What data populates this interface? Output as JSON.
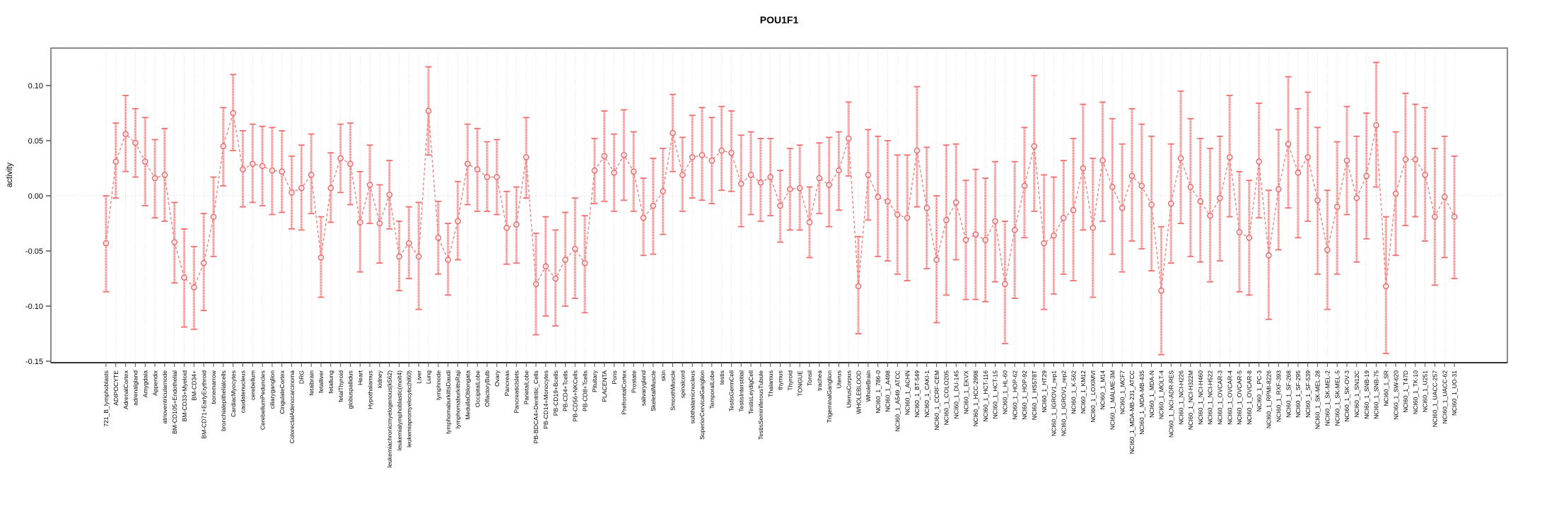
{
  "title": "POU1F1",
  "colors": {
    "point": "#e66a6a",
    "line": "#ef8585",
    "errorbar_wide": "#f5b4b4",
    "errorbar_dash": "#ee7272",
    "errorbar_cap": "#ee7272",
    "grid": "#e0e0e0",
    "zero_line": "#d9d9d9",
    "axis_box": "#8a8a8a",
    "axis_bottom": "#333333",
    "tick": "#555555"
  },
  "chart_data": {
    "type": "line",
    "title": "POU1F1",
    "xlabel": "",
    "ylabel": "activity",
    "ylim": [
      -0.151,
      0.134
    ],
    "yticks": [
      0.1,
      0.05,
      0.0,
      -0.05,
      -0.1,
      -0.15
    ],
    "grid": true,
    "legend": "none",
    "marker": "open-circle",
    "line_style": "dashed",
    "error_bars": true,
    "categories": [
      "721_B_lymphoblasts",
      "ADIPOCYTE",
      "AdrenalCortex",
      "adrenalgland",
      "Amygdala",
      "Appendix",
      "atrioventricularnode",
      "BM-CD105+Endothelial",
      "BM-CD33+Myeloid",
      "BM-CD34+",
      "BM-CD71+EarlyErythroid",
      "bonemarrow",
      "bronchialepithelialcells",
      "CardiacMyocytes",
      "caudatenucleus",
      "cerebellum",
      "CerebellumPeduncles",
      "ciliaryganglion",
      "CingulateCortex",
      "ColorectalAdenocarcinoma",
      "DRG",
      "fetalbrain",
      "fetalliver",
      "fetallung",
      "fetalThyroid",
      "globuspallidus",
      "Heart",
      "Hypothalamus",
      "kidney",
      "leukemiachronicmyelogenous(k562)",
      "leukemialymphoblastic(molt4)",
      "leukemiapromyelocytic(hl60)",
      "Liver",
      "Lung",
      "lymphnode",
      "lymphomaburkittsDaudi",
      "lymphomaburkittsRaji",
      "MedullaOblongata",
      "OccipitalLobe",
      "OlfactoryBulb",
      "Ovary",
      "Pancreas",
      "PancreaticIslets",
      "ParietalLobe",
      "PB-BDCA4+Dentritic_Cells",
      "PB-CD14+Monocytes",
      "PB-CD19+Bcells",
      "PB-CD4+Tcells",
      "PB-CD56+NKCells",
      "PB-CD8+Tcells",
      "Pituitary",
      "PLACENTA",
      "Pons",
      "PrefrontalCortex",
      "Prostate",
      "salivarygland",
      "SkeletalMuscle",
      "skin",
      "SmoothMuscle",
      "spinalcord",
      "subthalamicnucleus",
      "SuperiorCervicalGanglion",
      "TemporalLobe",
      "testis",
      "TestisGermCell",
      "TestisInterstitial",
      "TestisLeydigCell",
      "TestisSeminiferousTubule",
      "Thalamus",
      "thymus",
      "Thyroid",
      "TONGUE",
      "Tonsil",
      "trachea",
      "TrigeminalGanglion",
      "Uterus",
      "UterusCorpus",
      "WHOLEBLOOD",
      "WholeBrain",
      "NCI60_1_786-0",
      "NCI60_1_A498",
      "NCI60_1_A549_ATCC",
      "NCI60_1_ACHN",
      "NCI60_1_BT-549",
      "NCI60_1_CAKI-1",
      "NCI60_1_CCRF-CEM",
      "NCI60_1_COLO205",
      "NCI60_1_DU-145",
      "NCI60_1_EKVX",
      "NCI60_1_HCC-2998",
      "NCI60_1_HCT-116",
      "NCI60_1_HCT-15",
      "NCI60_1_HL-60",
      "NCI60_1_HOP-62",
      "NCI60_1_HOP-92",
      "NCI60_1_HS578T",
      "NCI60_1_HT29",
      "NCI60_1_IGROV1_rep1",
      "NCI60_1_IGROV1_rep2",
      "NCI60_1_K-562",
      "NCI60_1_KM12",
      "NCI60_1_LOXIMVI",
      "NCI60_1_M14",
      "NCI60_1_MALME-3M",
      "NCI60_1_MCF7",
      "NCI60_1_MDA-MB-231_ATCC",
      "NCI60_1_MDA-MB-435",
      "NCI60_1_MDA-N",
      "NCI60_1_MOLT-4",
      "NCI60_1_NCI-ADR-RES",
      "NCI60_1_NCI-H226",
      "NCI60_1_NCI-H322M",
      "NCI60_1_NCI-H460",
      "NCI60_1_NCI-H522",
      "NCI60_1_OVCAR-3",
      "NCI60_1_OVCAR-4",
      "NCI60_1_OVCAR-5",
      "NCI60_1_OVCAR-8",
      "NCI60_1_PC-3",
      "NCI60_1_RPMI-8226",
      "NCI60_1_RXF-393",
      "NCI60_1_SF-268",
      "NCI60_1_SF-295",
      "NCI60_1_SF-539",
      "NCI60_1_SK-MEL-28",
      "NCI60_1_SK-MEL-2",
      "NCI60_1_SK-MEL-5",
      "NCI60_1_SK-OV-3",
      "NCI60_1_SN12C",
      "NCI60_1_SNB-19",
      "NCI60_1_SNB-75",
      "NCI60_1_SR",
      "NCI60_1_SW-620",
      "NCI60_1_T47D",
      "NCI60_1_TK-10",
      "NCI60_1_U251",
      "NCI60_1_UACC-257",
      "NCI60_1_UACC-62",
      "NCI60_1_UO-31"
    ],
    "series": [
      {
        "name": "activity",
        "values": [
          -0.043,
          0.031,
          0.056,
          0.048,
          0.031,
          0.016,
          0.019,
          -0.042,
          -0.074,
          -0.083,
          -0.061,
          -0.019,
          0.045,
          0.075,
          0.024,
          0.029,
          0.027,
          0.023,
          0.022,
          0.003,
          0.007,
          0.019,
          -0.056,
          0.007,
          0.034,
          0.029,
          -0.024,
          0.01,
          -0.025,
          0.001,
          -0.055,
          -0.043,
          -0.055,
          0.077,
          -0.038,
          -0.058,
          -0.023,
          0.029,
          0.024,
          0.017,
          0.017,
          -0.029,
          -0.026,
          0.035,
          -0.08,
          -0.064,
          -0.075,
          -0.058,
          -0.048,
          -0.061,
          0.023,
          0.036,
          0.021,
          0.037,
          0.022,
          -0.02,
          -0.009,
          0.004,
          0.057,
          0.019,
          0.035,
          0.037,
          0.032,
          0.041,
          0.039,
          0.011,
          0.019,
          0.012,
          0.017,
          -0.009,
          0.006,
          0.007,
          -0.024,
          0.016,
          0.01,
          0.023,
          0.052,
          -0.082,
          0.019,
          -0.001,
          -0.005,
          -0.017,
          -0.02,
          0.041,
          -0.011,
          -0.058,
          -0.022,
          -0.006,
          -0.04,
          -0.035,
          -0.04,
          -0.023,
          -0.08,
          -0.031,
          0.009,
          0.045,
          -0.043,
          -0.036,
          -0.02,
          -0.013,
          0.025,
          -0.029,
          0.032,
          0.008,
          -0.011,
          0.018,
          0.009,
          -0.008,
          -0.086,
          -0.007,
          0.034,
          0.008,
          -0.005,
          -0.018,
          -0.002,
          0.035,
          -0.033,
          -0.038,
          0.031,
          -0.054,
          0.006,
          0.047,
          0.021,
          0.035,
          -0.004,
          -0.049,
          -0.01,
          0.032,
          -0.002,
          0.018,
          0.064,
          -0.082,
          0.002,
          0.033,
          0.033,
          0.019,
          -0.019,
          -0.001,
          -0.019
        ]
      },
      {
        "name": "lower",
        "values": [
          -0.087,
          -0.002,
          0.022,
          0.017,
          -0.009,
          -0.02,
          -0.023,
          -0.079,
          -0.119,
          -0.121,
          -0.104,
          -0.055,
          0.009,
          0.041,
          -0.01,
          -0.006,
          -0.009,
          -0.017,
          -0.015,
          -0.03,
          -0.031,
          -0.016,
          -0.092,
          -0.024,
          0.003,
          -0.008,
          -0.069,
          -0.025,
          -0.061,
          -0.03,
          -0.086,
          -0.075,
          -0.103,
          0.037,
          -0.071,
          -0.09,
          -0.058,
          -0.008,
          -0.014,
          -0.014,
          -0.017,
          -0.062,
          -0.061,
          -0.002,
          -0.126,
          -0.109,
          -0.118,
          -0.1,
          -0.093,
          -0.106,
          -0.007,
          -0.005,
          -0.014,
          -0.004,
          -0.014,
          -0.054,
          -0.053,
          -0.035,
          0.022,
          -0.014,
          -0.002,
          -0.004,
          -0.007,
          0.005,
          0.004,
          -0.028,
          -0.017,
          -0.023,
          -0.018,
          -0.042,
          -0.031,
          -0.031,
          -0.056,
          -0.016,
          -0.028,
          -0.013,
          0.018,
          -0.125,
          -0.022,
          -0.055,
          -0.059,
          -0.071,
          -0.077,
          -0.01,
          -0.066,
          -0.115,
          -0.09,
          -0.058,
          -0.094,
          -0.094,
          -0.096,
          -0.078,
          -0.134,
          -0.093,
          -0.038,
          -0.014,
          -0.103,
          -0.089,
          -0.071,
          -0.077,
          -0.031,
          -0.092,
          -0.023,
          -0.053,
          -0.069,
          -0.041,
          -0.048,
          -0.068,
          -0.144,
          -0.061,
          -0.025,
          -0.055,
          -0.06,
          -0.078,
          -0.059,
          -0.019,
          -0.087,
          -0.09,
          -0.02,
          -0.112,
          -0.049,
          -0.011,
          -0.038,
          -0.023,
          -0.071,
          -0.103,
          -0.071,
          -0.017,
          -0.06,
          -0.039,
          0.008,
          -0.143,
          -0.054,
          -0.027,
          -0.019,
          -0.041,
          -0.081,
          -0.056,
          -0.075
        ]
      },
      {
        "name": "upper",
        "values": [
          0.0,
          0.066,
          0.091,
          0.079,
          0.071,
          0.051,
          0.061,
          -0.006,
          -0.03,
          -0.046,
          -0.016,
          0.017,
          0.08,
          0.11,
          0.059,
          0.065,
          0.063,
          0.062,
          0.059,
          0.036,
          0.046,
          0.056,
          -0.019,
          0.039,
          0.065,
          0.066,
          0.022,
          0.046,
          0.01,
          0.032,
          -0.023,
          -0.01,
          -0.006,
          0.117,
          -0.005,
          -0.025,
          0.013,
          0.065,
          0.061,
          0.049,
          0.051,
          0.004,
          0.008,
          0.071,
          -0.034,
          -0.019,
          -0.031,
          -0.015,
          -0.002,
          -0.018,
          0.052,
          0.077,
          0.056,
          0.078,
          0.058,
          0.016,
          0.034,
          0.043,
          0.092,
          0.053,
          0.073,
          0.08,
          0.071,
          0.081,
          0.077,
          0.055,
          0.058,
          0.052,
          0.052,
          0.023,
          0.043,
          0.046,
          0.008,
          0.048,
          0.053,
          0.058,
          0.085,
          -0.037,
          0.06,
          0.054,
          0.05,
          0.037,
          0.037,
          0.099,
          0.044,
          0.0,
          0.046,
          0.047,
          0.014,
          0.024,
          0.016,
          0.031,
          -0.023,
          0.031,
          0.062,
          0.109,
          0.019,
          0.017,
          0.032,
          0.052,
          0.083,
          0.034,
          0.085,
          0.07,
          0.047,
          0.079,
          0.065,
          0.054,
          -0.028,
          0.047,
          0.095,
          0.07,
          0.052,
          0.043,
          0.054,
          0.091,
          0.022,
          0.014,
          0.084,
          0.005,
          0.06,
          0.108,
          0.079,
          0.094,
          0.062,
          0.005,
          0.049,
          0.081,
          0.054,
          0.075,
          0.121,
          -0.019,
          0.058,
          0.093,
          0.083,
          0.08,
          0.043,
          0.054,
          0.036
        ]
      }
    ]
  }
}
